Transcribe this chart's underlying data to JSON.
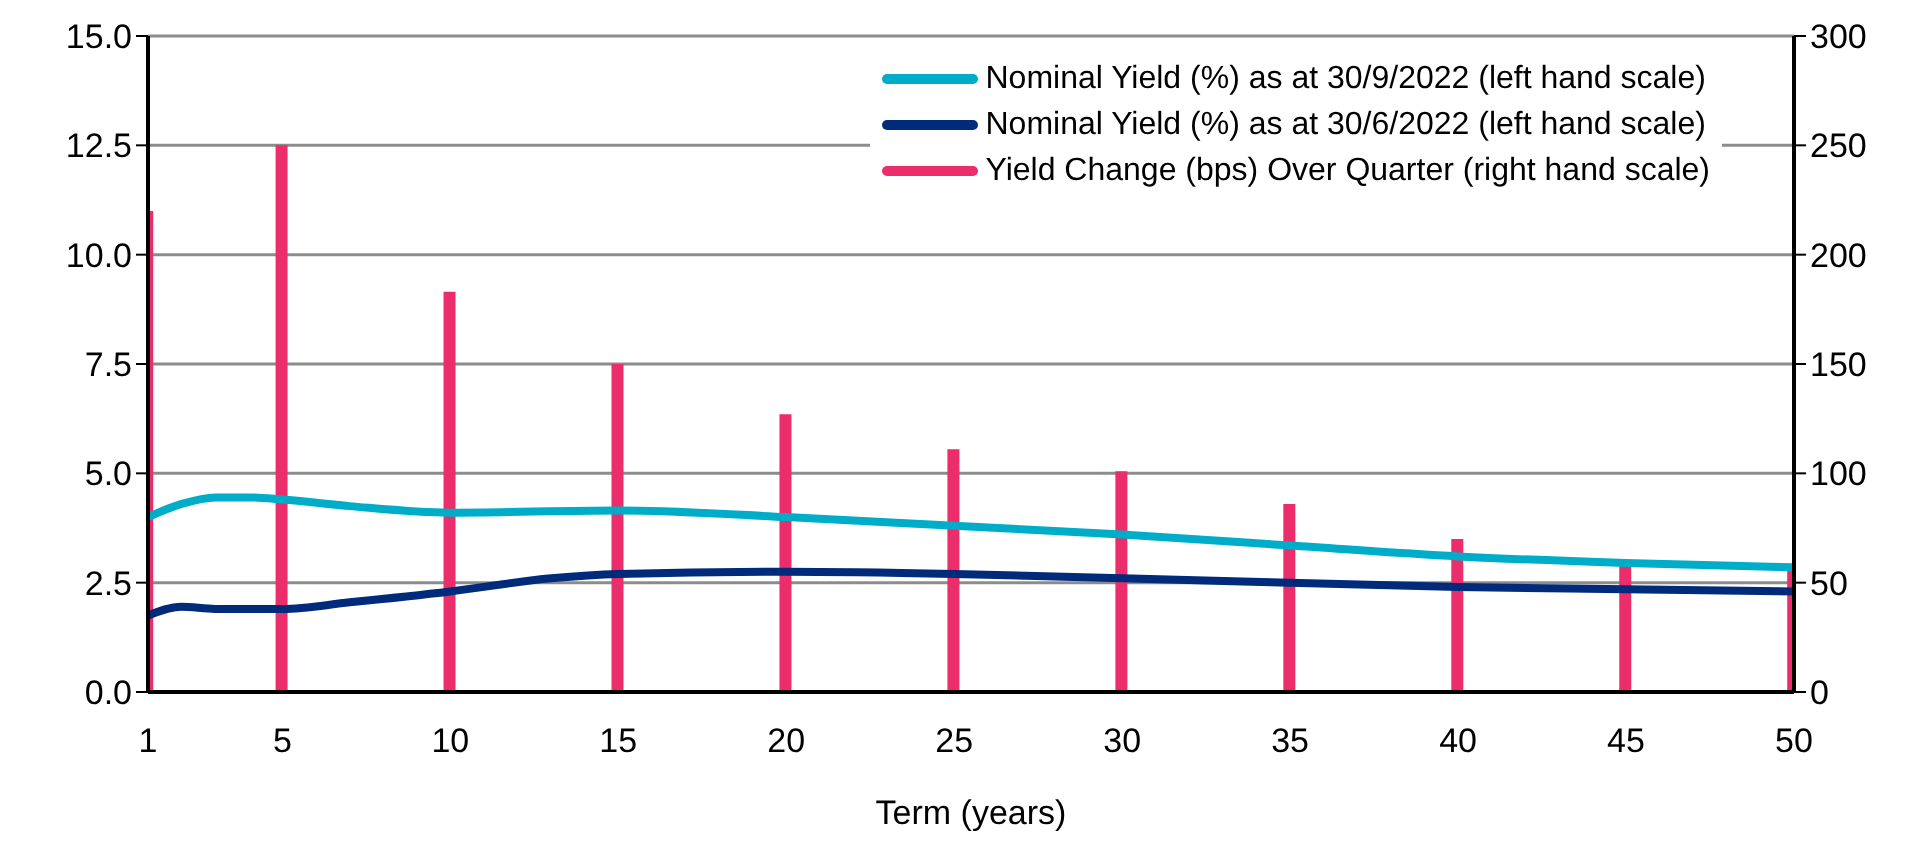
{
  "chart_data": {
    "type": "line",
    "xlabel": "Term (years)",
    "xlim": [
      1,
      50
    ],
    "xticks": [
      1,
      5,
      10,
      15,
      20,
      25,
      30,
      35,
      40,
      45,
      50
    ],
    "ylim": [
      0,
      15
    ],
    "yticks": [
      {
        "value": 0,
        "label": "0.0"
      },
      {
        "value": 2.5,
        "label": "2.5"
      },
      {
        "value": 5,
        "label": "5.0"
      },
      {
        "value": 7.5,
        "label": "7.5"
      },
      {
        "value": 10,
        "label": "10.0"
      },
      {
        "value": 12.5,
        "label": "12.5"
      },
      {
        "value": 15,
        "label": "15.0"
      }
    ],
    "y2lim": [
      0,
      300
    ],
    "y2ticks": [
      0,
      50,
      100,
      150,
      200,
      250,
      300
    ],
    "grid": "y",
    "legend": "top right",
    "series": [
      {
        "name": "Nominal Yield (%) as at 30/9/2022 (left hand scale)",
        "color": "#00adc8",
        "x": [
          1,
          2,
          3,
          4,
          5,
          7,
          10,
          15,
          20,
          25,
          30,
          35,
          40,
          45,
          50
        ],
        "values": [
          4.0,
          4.3,
          4.45,
          4.45,
          4.4,
          4.25,
          4.1,
          4.15,
          4.0,
          3.8,
          3.6,
          3.35,
          3.1,
          2.95,
          2.85
        ]
      },
      {
        "name": "Nominal Yield (%) as at 30/6/2022 (left hand scale)",
        "color": "#002a7a",
        "x": [
          1,
          2,
          3,
          5,
          7,
          10,
          13,
          15,
          20,
          25,
          30,
          35,
          40,
          45,
          50
        ],
        "values": [
          1.75,
          1.95,
          1.9,
          1.9,
          2.05,
          2.3,
          2.6,
          2.7,
          2.75,
          2.7,
          2.6,
          2.5,
          2.4,
          2.35,
          2.3
        ]
      },
      {
        "name": "Yield Change (bps) Over Quarter (right hand scale)",
        "type": "bar",
        "axis": "y2",
        "color": "#ec2d6b",
        "x": [
          1,
          5,
          10,
          15,
          20,
          25,
          30,
          35,
          40,
          45,
          50
        ],
        "values": [
          220,
          250,
          183,
          150,
          127,
          111,
          101,
          86,
          70,
          59,
          57
        ]
      }
    ]
  }
}
